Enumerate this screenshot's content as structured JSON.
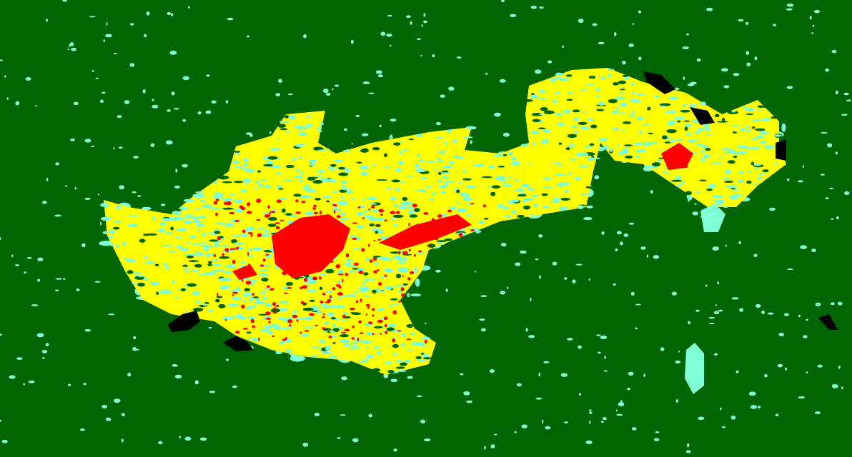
{
  "map": {
    "type": "burn-severity-classification",
    "colors": {
      "background_unburned": "#006400",
      "low": "#7fffd4",
      "moderate": "#ffff00",
      "high": "#ff0000",
      "water": "#000000"
    }
  }
}
